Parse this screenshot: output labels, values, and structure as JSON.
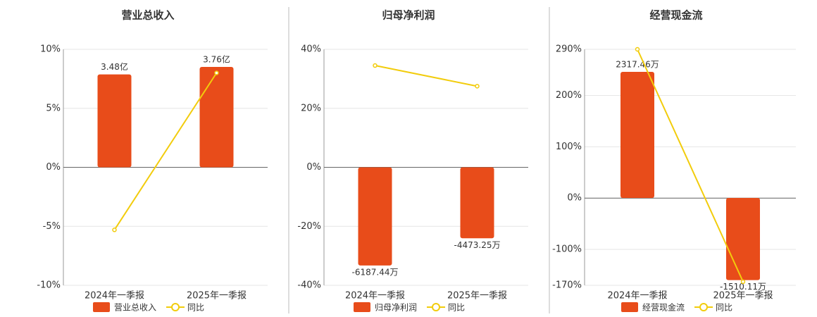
{
  "chart_data": [
    {
      "type": "bar",
      "title": "营业总收入",
      "categories": [
        "2024年一季报",
        "2025年一季报"
      ],
      "ylim": [
        -10,
        10
      ],
      "yticks": [
        {
          "value": -10,
          "label": "-10%"
        },
        {
          "value": -5,
          "label": "-5%"
        },
        {
          "value": 0,
          "label": "0%"
        },
        {
          "value": 5,
          "label": "5%"
        },
        {
          "value": 10,
          "label": "10%"
        }
      ],
      "y2lim": [
        -4.42,
        4.42
      ],
      "grid": true,
      "series": [
        {
          "name": "营业总收入",
          "type": "bar",
          "axis": "y2",
          "color": "#e84c1a",
          "values": [
            3.48,
            3.76
          ],
          "value_labels": [
            "3.48亿",
            "3.76亿"
          ]
        },
        {
          "name": "同比",
          "type": "line",
          "color": "#f2cc0c",
          "values": [
            -5.3,
            8.0
          ]
        }
      ]
    },
    {
      "type": "bar",
      "title": "归母净利润",
      "categories": [
        "2024年一季报",
        "2025年一季报"
      ],
      "ylim": [
        -40,
        40
      ],
      "yticks": [
        {
          "value": -40,
          "label": "-40%"
        },
        {
          "value": -20,
          "label": "-20%"
        },
        {
          "value": 0,
          "label": "0%"
        },
        {
          "value": 20,
          "label": "20%"
        },
        {
          "value": 40,
          "label": "40%"
        }
      ],
      "y2lim": [
        -7434,
        7434
      ],
      "grid": true,
      "series": [
        {
          "name": "归母净利润",
          "type": "bar",
          "axis": "y2",
          "color": "#e84c1a",
          "values": [
            -6187.44,
            -4473.25
          ],
          "value_labels": [
            "-6187.44万",
            "-4473.25万"
          ]
        },
        {
          "name": "同比",
          "type": "line",
          "color": "#f2cc0c",
          "values": [
            34.5,
            27.5
          ]
        }
      ]
    },
    {
      "type": "bar",
      "title": "经营现金流",
      "categories": [
        "2024年一季报",
        "2025年一季报"
      ],
      "ylim": [
        -170,
        290
      ],
      "yticks": [
        {
          "value": -170,
          "label": "-170%"
        },
        {
          "value": -100,
          "label": "-100%"
        },
        {
          "value": 0,
          "label": "0%"
        },
        {
          "value": 100,
          "label": "100%"
        },
        {
          "value": 200,
          "label": "200%"
        },
        {
          "value": 290,
          "label": "290%"
        }
      ],
      "y2lim": [
        -1605,
        2732
      ],
      "grid": true,
      "series": [
        {
          "name": "经营现金流",
          "type": "bar",
          "axis": "y2",
          "color": "#e84c1a",
          "values": [
            2317.46,
            -1510.11
          ],
          "value_labels": [
            "2317.46万",
            "-1510.11万"
          ]
        },
        {
          "name": "同比",
          "type": "line",
          "color": "#f2cc0c",
          "values": [
            290,
            -163
          ]
        }
      ]
    }
  ]
}
